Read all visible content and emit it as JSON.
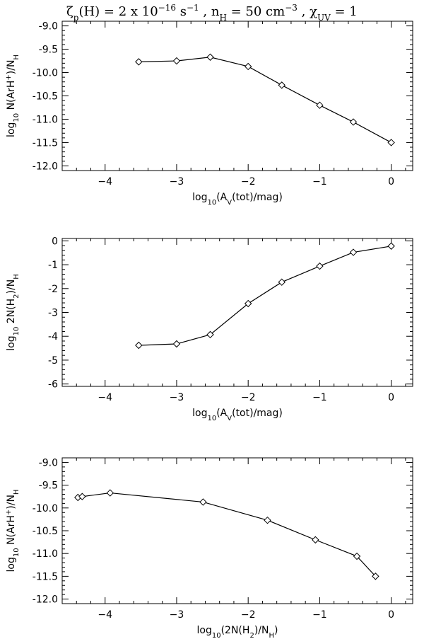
{
  "title": "ζp(H) = 2 x 10−16 s−1 , nH = 50 cm−3 , χUV = 1",
  "chart_data": [
    {
      "type": "line",
      "xlabel": "log10(AV(tot)/mag)",
      "ylabel": "log10 N(ArH+)/NH",
      "xlim": [
        -4.6,
        0.3
      ],
      "ylim": [
        -12.1,
        -8.9
      ],
      "xticks": [
        -4,
        -3,
        -2,
        -1,
        0
      ],
      "xtick_labels": [
        "−4",
        "−3",
        "−2",
        "−1",
        "0"
      ],
      "yticks": [
        -12.0,
        -11.5,
        -11.0,
        -10.5,
        -10.0,
        -9.5,
        -9.0
      ],
      "ytick_labels": [
        "-12.0",
        "-11.5",
        "-11.0",
        "-10.5",
        "-10.0",
        "-9.5",
        "-9.0"
      ],
      "marker": "diamond",
      "x": [
        -3.53,
        -3.0,
        -2.53,
        -2.0,
        -1.53,
        -1.0,
        -0.53,
        0.0
      ],
      "y": [
        -9.77,
        -9.75,
        -9.67,
        -9.87,
        -10.27,
        -10.7,
        -11.06,
        -11.5
      ]
    },
    {
      "type": "line",
      "xlabel": "log10(AV(tot)/mag)",
      "ylabel": "log10 2N(H2)/NH",
      "xlim": [
        -4.6,
        0.3
      ],
      "ylim": [
        -6.1,
        0.1
      ],
      "xticks": [
        -4,
        -3,
        -2,
        -1,
        0
      ],
      "xtick_labels": [
        "−4",
        "−3",
        "−2",
        "−1",
        "0"
      ],
      "yticks": [
        -6,
        -5,
        -4,
        -3,
        -2,
        -1,
        0
      ],
      "ytick_labels": [
        "-6",
        "-5",
        "-4",
        "-3",
        "-2",
        "-1",
        "0"
      ],
      "marker": "diamond",
      "x": [
        -3.53,
        -3.0,
        -2.53,
        -2.0,
        -1.53,
        -1.0,
        -0.53,
        0.0
      ],
      "y": [
        -4.38,
        -4.32,
        -3.93,
        -2.63,
        -1.73,
        -1.06,
        -0.48,
        -0.22
      ]
    },
    {
      "type": "line",
      "xlabel": "log10(2N(H2)/NH)",
      "ylabel": "log10 N(ArH+)/NH",
      "xlim": [
        -4.6,
        0.3
      ],
      "ylim": [
        -12.1,
        -8.9
      ],
      "xticks": [
        -4,
        -3,
        -2,
        -1,
        0
      ],
      "xtick_labels": [
        "−4",
        "−3",
        "−2",
        "−1",
        "0"
      ],
      "yticks": [
        -12.0,
        -11.5,
        -11.0,
        -10.5,
        -10.0,
        -9.5,
        -9.0
      ],
      "ytick_labels": [
        "-12.0",
        "-11.5",
        "-11.0",
        "-10.5",
        "-10.0",
        "-9.5",
        "-9.0"
      ],
      "marker": "diamond",
      "x": [
        -4.38,
        -4.32,
        -3.93,
        -2.63,
        -1.73,
        -1.06,
        -0.48,
        -0.22
      ],
      "y": [
        -9.77,
        -9.75,
        -9.67,
        -9.87,
        -10.27,
        -10.7,
        -11.06,
        -11.5
      ]
    }
  ]
}
